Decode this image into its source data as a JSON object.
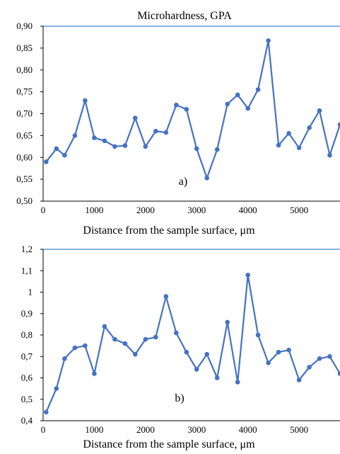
{
  "chart_data": [
    {
      "type": "line",
      "title": "Microhardness, GPA",
      "xlabel": "Distance from the sample surface, μm",
      "ylabel": "",
      "panel_label": "a)",
      "xlim": [
        0,
        5800
      ],
      "ylim": [
        0.5,
        0.9
      ],
      "xticks": [
        "0",
        "1000",
        "2000",
        "3000",
        "4000",
        "5000"
      ],
      "xtick_values": [
        0,
        1000,
        2000,
        3000,
        4000,
        5000
      ],
      "yticks": [
        "0,50",
        "0,55",
        "0,60",
        "0,65",
        "0,70",
        "0,75",
        "0,80",
        "0,85",
        "0,90"
      ],
      "ytick_values": [
        0.5,
        0.55,
        0.6,
        0.65,
        0.7,
        0.75,
        0.8,
        0.85,
        0.9
      ],
      "grid": false,
      "color": "#4472C4",
      "series": [
        {
          "x": [
            60,
            260,
            420,
            620,
            820,
            1000,
            1200,
            1400,
            1600,
            1800,
            2000,
            2200,
            2400,
            2600,
            2800,
            3000,
            3200,
            3400,
            3600,
            3800,
            4000,
            4200,
            4400,
            4600,
            4800,
            5000,
            5200,
            5400,
            5600,
            5800
          ],
          "values": [
            0.59,
            0.62,
            0.605,
            0.65,
            0.73,
            0.645,
            0.638,
            0.625,
            0.627,
            0.69,
            0.625,
            0.66,
            0.657,
            0.72,
            0.71,
            0.62,
            0.553,
            0.618,
            0.722,
            0.743,
            0.712,
            0.755,
            0.867,
            0.628,
            0.655,
            0.622,
            0.668,
            0.707,
            0.605,
            0.675
          ]
        }
      ]
    },
    {
      "type": "line",
      "title": "",
      "xlabel": "Distance from the sample surface, μm",
      "ylabel": "",
      "panel_label": "b)",
      "xlim": [
        0,
        5800
      ],
      "ylim": [
        0.4,
        1.2
      ],
      "xticks": [
        "0",
        "1000",
        "2000",
        "3000",
        "4000",
        "5000"
      ],
      "xtick_values": [
        0,
        1000,
        2000,
        3000,
        4000,
        5000
      ],
      "yticks": [
        "0,4",
        "0,5",
        "0,6",
        "0,7",
        "0,8",
        "0,9",
        "1",
        "1,1",
        "1,2"
      ],
      "ytick_values": [
        0.4,
        0.5,
        0.6,
        0.7,
        0.8,
        0.9,
        1.0,
        1.1,
        1.2
      ],
      "grid": false,
      "color": "#4472C4",
      "series": [
        {
          "x": [
            60,
            260,
            420,
            620,
            820,
            1000,
            1200,
            1400,
            1600,
            1800,
            2000,
            2200,
            2400,
            2600,
            2800,
            3000,
            3200,
            3400,
            3600,
            3800,
            4000,
            4200,
            4400,
            4600,
            4800,
            5000,
            5200,
            5400,
            5600,
            5800
          ],
          "values": [
            0.44,
            0.55,
            0.69,
            0.74,
            0.75,
            0.62,
            0.84,
            0.78,
            0.76,
            0.71,
            0.78,
            0.79,
            0.98,
            0.81,
            0.72,
            0.64,
            0.71,
            0.6,
            0.86,
            0.58,
            1.08,
            0.8,
            0.67,
            0.72,
            0.73,
            0.59,
            0.65,
            0.69,
            0.7,
            0.62
          ]
        }
      ]
    }
  ]
}
